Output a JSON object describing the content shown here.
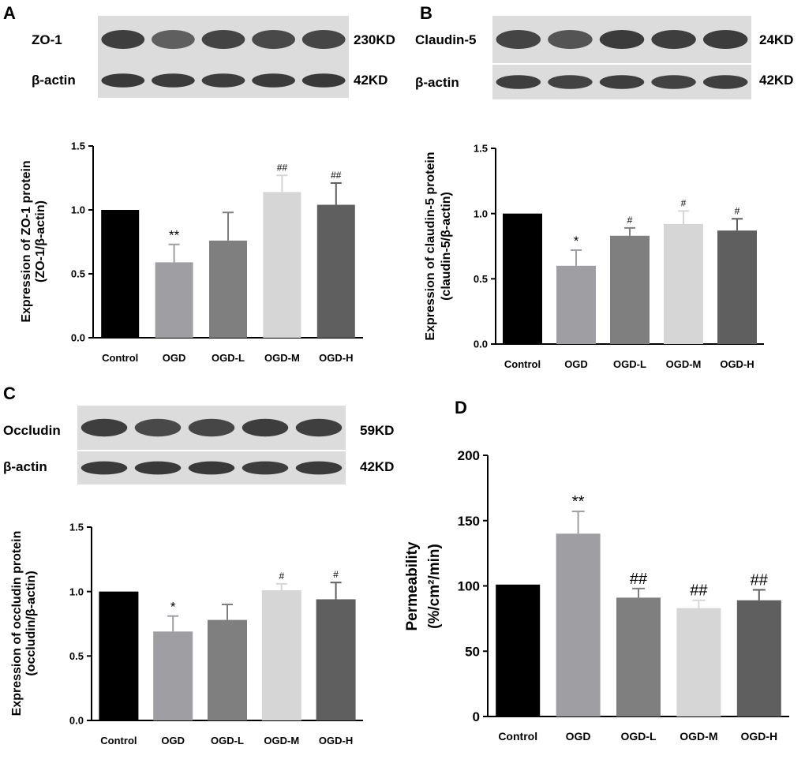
{
  "panels": [
    {
      "letter": "A",
      "blot_rows": [
        {
          "protein": "ZO-1",
          "size": "230KD",
          "intensity": [
            0.85,
            0.55,
            0.8,
            0.75,
            0.78
          ]
        },
        {
          "protein": "β-actin",
          "size": "42KD",
          "intensity": [
            0.9,
            0.88,
            0.86,
            0.88,
            0.9
          ]
        }
      ]
    },
    {
      "letter": "B",
      "blot_rows": [
        {
          "protein": "Claudin-5",
          "size": "24KD",
          "intensity": [
            0.8,
            0.65,
            0.88,
            0.85,
            0.87
          ]
        },
        {
          "protein": "β-actin",
          "size": "42KD",
          "intensity": [
            0.85,
            0.82,
            0.85,
            0.82,
            0.84
          ]
        }
      ]
    },
    {
      "letter": "C",
      "blot_rows": [
        {
          "protein": "Occludin",
          "size": "59KD",
          "intensity": [
            0.85,
            0.75,
            0.78,
            0.86,
            0.84
          ]
        },
        {
          "protein": "β-actin",
          "size": "42KD",
          "intensity": [
            0.88,
            0.9,
            0.9,
            0.86,
            0.88
          ]
        }
      ]
    },
    {
      "letter": "D",
      "blot_rows": []
    }
  ],
  "colors": [
    "#000000",
    "#9e9ea3",
    "#7f7f7f",
    "#d6d6d6",
    "#5f5f5f"
  ],
  "chart_data": [
    {
      "type": "bar",
      "categories": [
        "Control",
        "OGD",
        "OGD-L",
        "OGD-M",
        "OGD-H"
      ],
      "values": [
        1.0,
        0.59,
        0.76,
        1.14,
        1.04
      ],
      "errors": [
        0,
        0.14,
        0.22,
        0.13,
        0.17
      ],
      "annotations": [
        "",
        "**",
        "",
        "##",
        "##"
      ],
      "ylabel_lines": [
        "Expression of ZO-1 protein",
        "(ZO-1/β-actin)"
      ],
      "ylim": [
        0,
        1.5
      ],
      "yticks": [
        "0.0",
        "0.5",
        "1.0",
        "1.5"
      ]
    },
    {
      "type": "bar",
      "categories": [
        "Control",
        "OGD",
        "OGD-L",
        "OGD-M",
        "OGD-H"
      ],
      "values": [
        1.0,
        0.6,
        0.83,
        0.92,
        0.87
      ],
      "errors": [
        0,
        0.12,
        0.06,
        0.1,
        0.09
      ],
      "annotations": [
        "",
        "*",
        "#",
        "#",
        "#"
      ],
      "ylabel_lines": [
        "Expression of claudin-5 protein",
        "(claudin-5/β-actin)"
      ],
      "ylim": [
        0,
        1.5
      ],
      "yticks": [
        "0.0",
        "0.5",
        "1.0",
        "1.5"
      ]
    },
    {
      "type": "bar",
      "categories": [
        "Control",
        "OGD",
        "OGD-L",
        "OGD-M",
        "OGD-H"
      ],
      "values": [
        1.0,
        0.69,
        0.78,
        1.01,
        0.94
      ],
      "errors": [
        0,
        0.12,
        0.12,
        0.05,
        0.13
      ],
      "annotations": [
        "",
        "*",
        "",
        "#",
        "#"
      ],
      "ylabel_lines": [
        "Expression of occludin protein",
        "(occludin/β-actin)"
      ],
      "ylim": [
        0,
        1.5
      ],
      "yticks": [
        "0.0",
        "0.5",
        "1.0",
        "1.5"
      ]
    },
    {
      "type": "bar",
      "categories": [
        "Control",
        "OGD",
        "OGD-L",
        "OGD-M",
        "OGD-H"
      ],
      "values": [
        101,
        140,
        91,
        83,
        89
      ],
      "errors": [
        0,
        17,
        7,
        6,
        8
      ],
      "annotations": [
        "",
        "**",
        "##",
        "##",
        "##"
      ],
      "ylabel_lines": [
        "Permeability",
        "(%/cm²/min)"
      ],
      "ylim": [
        0,
        200
      ],
      "yticks": [
        "0",
        "50",
        "100",
        "150",
        "200"
      ]
    }
  ]
}
